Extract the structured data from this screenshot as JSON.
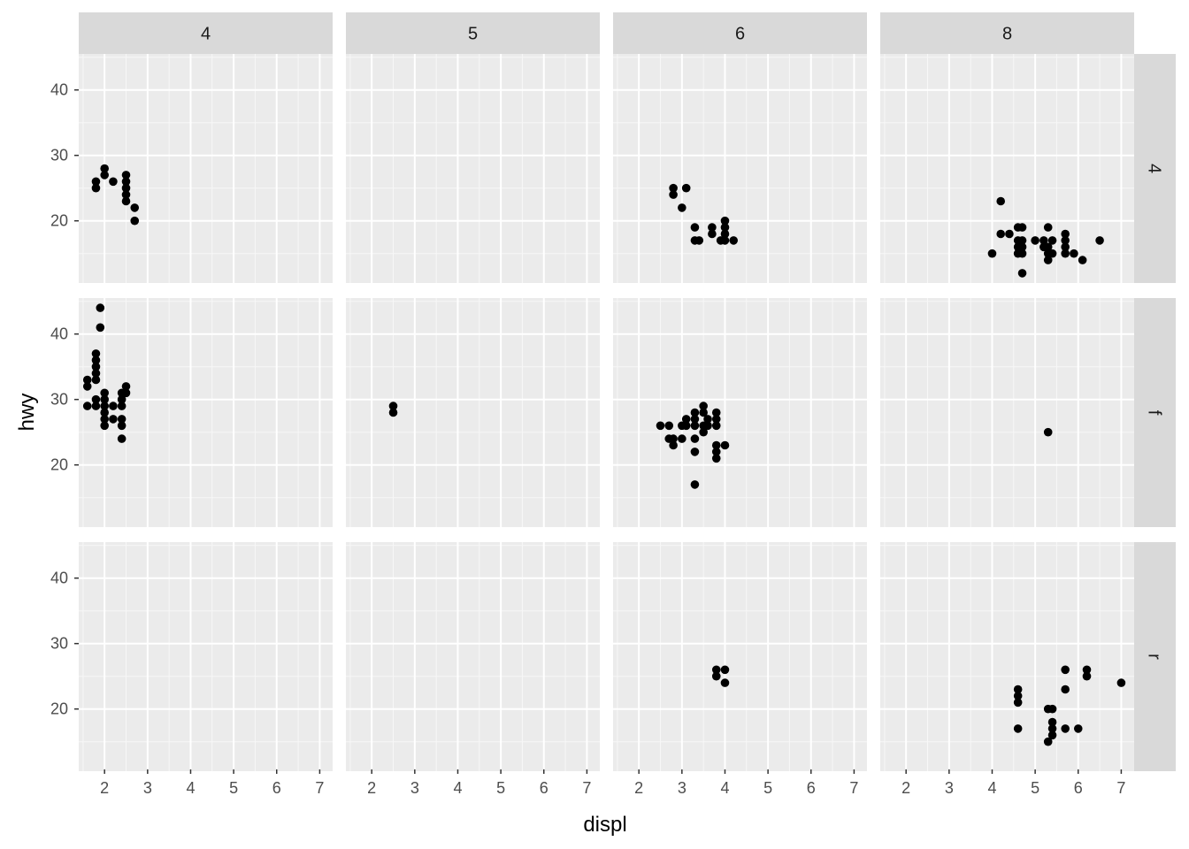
{
  "chart_data": {
    "type": "scatter",
    "facet_type": "grid",
    "xlabel": "displ",
    "ylabel": "hwy",
    "col_facets": [
      "4",
      "5",
      "6",
      "8"
    ],
    "row_facets": [
      "4",
      "f",
      "r"
    ],
    "xlim": [
      1.4,
      7.3
    ],
    "ylim": [
      10.5,
      45.5
    ],
    "x_ticks": [
      2,
      3,
      4,
      5,
      6,
      7
    ],
    "x_tick_labels": [
      "2",
      "3",
      "4",
      "5",
      "6",
      "7"
    ],
    "y_ticks": [
      20,
      30,
      40
    ],
    "y_tick_labels": [
      "20",
      "30",
      "40"
    ],
    "grid": true,
    "colors": {
      "panel_bg": "#ebebeb",
      "strip_bg": "#d9d9d9",
      "grid_major": "#ffffff",
      "grid_minor": "#f7f7f7",
      "point": "#000000"
    },
    "panels": [
      {
        "row": "4",
        "col": "4",
        "points": [
          [
            1.8,
            26
          ],
          [
            1.8,
            25
          ],
          [
            2.0,
            28
          ],
          [
            2.0,
            27
          ],
          [
            2.2,
            26
          ],
          [
            2.5,
            27
          ],
          [
            2.5,
            26
          ],
          [
            2.5,
            25
          ],
          [
            2.5,
            24
          ],
          [
            2.5,
            23
          ],
          [
            2.7,
            22
          ],
          [
            2.7,
            20
          ]
        ]
      },
      {
        "row": "4",
        "col": "5",
        "points": []
      },
      {
        "row": "4",
        "col": "6",
        "points": [
          [
            2.8,
            25
          ],
          [
            2.8,
            24
          ],
          [
            3.1,
            25
          ],
          [
            3.0,
            22
          ],
          [
            3.3,
            19
          ],
          [
            3.3,
            17
          ],
          [
            3.4,
            17
          ],
          [
            3.7,
            19
          ],
          [
            3.7,
            18
          ],
          [
            4.0,
            20
          ],
          [
            4.0,
            19
          ],
          [
            4.0,
            18
          ],
          [
            4.0,
            17
          ],
          [
            3.9,
            17
          ],
          [
            4.2,
            17
          ]
        ]
      },
      {
        "row": "4",
        "col": "8",
        "points": [
          [
            4.0,
            15
          ],
          [
            4.2,
            23
          ],
          [
            4.2,
            18
          ],
          [
            4.4,
            18
          ],
          [
            4.6,
            19
          ],
          [
            4.6,
            17
          ],
          [
            4.6,
            16
          ],
          [
            4.6,
            15
          ],
          [
            4.7,
            19
          ],
          [
            4.7,
            17
          ],
          [
            4.7,
            16
          ],
          [
            4.7,
            15
          ],
          [
            4.7,
            12
          ],
          [
            5.0,
            17
          ],
          [
            5.2,
            17
          ],
          [
            5.2,
            16
          ],
          [
            5.3,
            19
          ],
          [
            5.3,
            16
          ],
          [
            5.3,
            15
          ],
          [
            5.3,
            14
          ],
          [
            5.4,
            17
          ],
          [
            5.4,
            15
          ],
          [
            5.7,
            18
          ],
          [
            5.7,
            17
          ],
          [
            5.7,
            16
          ],
          [
            5.7,
            15
          ],
          [
            5.9,
            15
          ],
          [
            6.1,
            14
          ],
          [
            6.5,
            17
          ]
        ]
      },
      {
        "row": "f",
        "col": "4",
        "points": [
          [
            1.6,
            33
          ],
          [
            1.6,
            32
          ],
          [
            1.6,
            29
          ],
          [
            1.8,
            37
          ],
          [
            1.8,
            36
          ],
          [
            1.8,
            35
          ],
          [
            1.8,
            34
          ],
          [
            1.8,
            33
          ],
          [
            1.8,
            30
          ],
          [
            1.8,
            29
          ],
          [
            1.9,
            44
          ],
          [
            1.9,
            41
          ],
          [
            2.0,
            31
          ],
          [
            2.0,
            30
          ],
          [
            2.0,
            29
          ],
          [
            2.0,
            28
          ],
          [
            2.0,
            27
          ],
          [
            2.0,
            26
          ],
          [
            2.2,
            29
          ],
          [
            2.2,
            27
          ],
          [
            2.4,
            31
          ],
          [
            2.4,
            30
          ],
          [
            2.4,
            29
          ],
          [
            2.4,
            27
          ],
          [
            2.4,
            26
          ],
          [
            2.4,
            24
          ],
          [
            2.5,
            32
          ],
          [
            2.5,
            31
          ]
        ]
      },
      {
        "row": "f",
        "col": "5",
        "points": [
          [
            2.5,
            29
          ],
          [
            2.5,
            28
          ]
        ]
      },
      {
        "row": "f",
        "col": "6",
        "points": [
          [
            2.5,
            26
          ],
          [
            2.7,
            26
          ],
          [
            2.7,
            24
          ],
          [
            2.8,
            24
          ],
          [
            2.8,
            23
          ],
          [
            3.0,
            26
          ],
          [
            3.0,
            24
          ],
          [
            3.1,
            27
          ],
          [
            3.1,
            26
          ],
          [
            3.3,
            28
          ],
          [
            3.3,
            27
          ],
          [
            3.3,
            26
          ],
          [
            3.3,
            24
          ],
          [
            3.3,
            22
          ],
          [
            3.3,
            17
          ],
          [
            3.5,
            29
          ],
          [
            3.5,
            28
          ],
          [
            3.5,
            26
          ],
          [
            3.5,
            25
          ],
          [
            3.6,
            27
          ],
          [
            3.6,
            26
          ],
          [
            3.8,
            28
          ],
          [
            3.8,
            27
          ],
          [
            3.8,
            26
          ],
          [
            3.8,
            23
          ],
          [
            3.8,
            22
          ],
          [
            3.8,
            21
          ],
          [
            4.0,
            23
          ]
        ]
      },
      {
        "row": "f",
        "col": "8",
        "points": [
          [
            5.3,
            25
          ]
        ]
      },
      {
        "row": "r",
        "col": "4",
        "points": []
      },
      {
        "row": "r",
        "col": "5",
        "points": []
      },
      {
        "row": "r",
        "col": "6",
        "points": [
          [
            3.8,
            26
          ],
          [
            3.8,
            25
          ],
          [
            4.0,
            26
          ],
          [
            4.0,
            24
          ]
        ]
      },
      {
        "row": "r",
        "col": "8",
        "points": [
          [
            4.6,
            23
          ],
          [
            4.6,
            22
          ],
          [
            4.6,
            21
          ],
          [
            4.6,
            17
          ],
          [
            5.3,
            20
          ],
          [
            5.3,
            15
          ],
          [
            5.4,
            20
          ],
          [
            5.4,
            18
          ],
          [
            5.4,
            17
          ],
          [
            5.4,
            16
          ],
          [
            5.7,
            26
          ],
          [
            5.7,
            23
          ],
          [
            5.7,
            17
          ],
          [
            6.0,
            17
          ],
          [
            6.2,
            26
          ],
          [
            6.2,
            25
          ],
          [
            7.0,
            24
          ]
        ]
      }
    ]
  }
}
